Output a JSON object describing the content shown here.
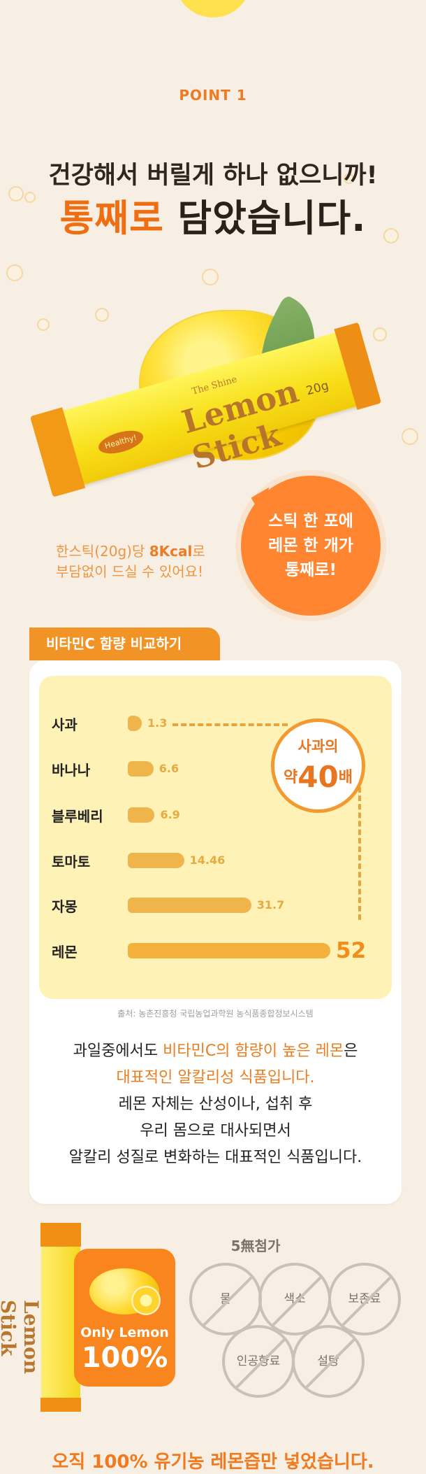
{
  "header": {
    "point": "POINT 1",
    "line1": "건강해서 버릴게 하나 없으니까!",
    "line2_accent": "통째로",
    "line2_rest": " 담았습니다."
  },
  "product": {
    "stick_text": "Lemon Stick",
    "stick_small": "The Shine",
    "stick_gram": "20g",
    "badge": "Healthy!"
  },
  "speech": [
    "스틱 한 포에",
    "레몬 한 개가",
    "통째로!"
  ],
  "calories": {
    "line1_prefix": "한스틱(20g)당 ",
    "line1_strong": "8Kcal",
    "line1_suffix": "로",
    "line2": "부담없이 드실 수 있어요!"
  },
  "compare": {
    "tag": "비타민C 함량 비교하기",
    "circle_top": "사과의",
    "circle_prefix": "약",
    "circle_value": "40",
    "circle_suffix": "배",
    "source": "출처: 농촌진흥청 국립농업과학원 농식품종합정보시스템",
    "description": [
      {
        "plain": "과일중에서도 ",
        "accent": "비타민C의 함량이 높은 레몬",
        "after": "은"
      },
      {
        "accent": "대표적인 알칼리성 식품입니다."
      },
      {
        "plain": "레몬 자체는 산성이나, 섭취 후"
      },
      {
        "plain": "우리 몸으로 대사되면서"
      },
      {
        "plain": "알칼리 성질로 변화하는 대표적인 식품입니다."
      }
    ]
  },
  "chart_data": {
    "type": "bar",
    "categories": [
      "사과",
      "바나나",
      "블루베리",
      "토마토",
      "자몽",
      "레몬"
    ],
    "values": [
      1.3,
      6.6,
      6.9,
      14.46,
      31.7,
      52
    ],
    "title": "비타민C 함량 비교하기",
    "xlabel": "",
    "ylabel": "",
    "ylim": [
      0,
      52
    ],
    "grid": false,
    "legend": "none"
  },
  "additives": {
    "title": "5無첨가",
    "items": [
      "물",
      "색소",
      "보존료",
      "인공향료",
      "설탕"
    ]
  },
  "only": {
    "line1": "Only Lemon",
    "line2": "100%"
  },
  "footer": "오직 100% 유기농 레몬즙만 넣었습니다."
}
